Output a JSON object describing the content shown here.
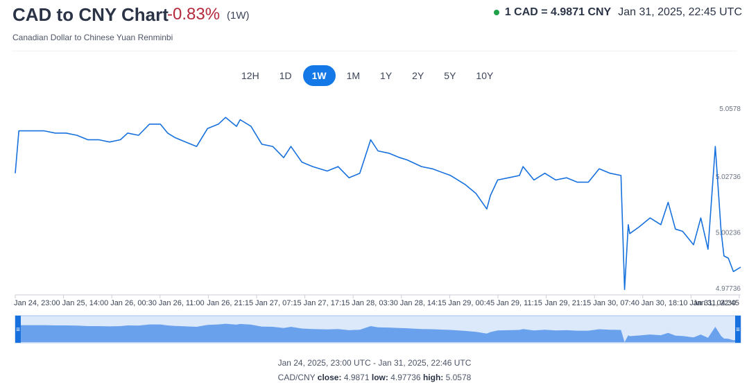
{
  "header": {
    "title": "CAD to CNY Chart",
    "change": "-0.83%",
    "period": "(1W)",
    "subtitle": "Canadian Dollar to Chinese Yuan Renminbi",
    "rate": "1 CAD = 4.9871 CNY",
    "rate_time": "Jan 31, 2025, 22:45 UTC",
    "status_color": "#1fa14a"
  },
  "range_buttons": [
    {
      "label": "12H",
      "active": false
    },
    {
      "label": "1D",
      "active": false
    },
    {
      "label": "1W",
      "active": true
    },
    {
      "label": "1M",
      "active": false
    },
    {
      "label": "1Y",
      "active": false
    },
    {
      "label": "2Y",
      "active": false
    },
    {
      "label": "5Y",
      "active": false
    },
    {
      "label": "10Y",
      "active": false
    }
  ],
  "footer": {
    "range_text": "Jan 24, 2025, 23:00 UTC - Jan 31, 2025, 22:46 UTC",
    "pair": "CAD/CNY",
    "close_label": "close:",
    "close": "4.9871",
    "low_label": "low:",
    "low": "4.97736",
    "high_label": "high:",
    "high": "5.0578"
  },
  "chart_data": {
    "type": "line",
    "line_color": "#1670dd",
    "navigator_fill": "#6aa1ec",
    "x_tick_labels": [
      "Jan 24, 23:00",
      "Jan 25, 14:00",
      "Jan 26, 00:30",
      "Jan 26, 11:00",
      "Jan 26, 21:15",
      "Jan 27, 07:15",
      "Jan 27, 17:15",
      "Jan 28, 03:30",
      "Jan 28, 14:15",
      "Jan 29, 00:45",
      "Jan 29, 11:15",
      "Jan 29, 21:15",
      "Jan 30, 07:40",
      "Jan 30, 18:10",
      "Jan 31, 04:30",
      "Jan 31, 22:45"
    ],
    "y_ticks": [
      "5.0578",
      "5.02736",
      "5.00236",
      "4.97736"
    ],
    "ylim": [
      4.97736,
      5.0578
    ],
    "grid": false,
    "x": [
      0,
      0.005,
      0.02,
      0.04,
      0.055,
      0.07,
      0.085,
      0.1,
      0.115,
      0.13,
      0.145,
      0.155,
      0.17,
      0.185,
      0.2,
      0.21,
      0.22,
      0.235,
      0.25,
      0.265,
      0.28,
      0.29,
      0.305,
      0.31,
      0.325,
      0.34,
      0.355,
      0.37,
      0.38,
      0.395,
      0.41,
      0.43,
      0.445,
      0.46,
      0.475,
      0.49,
      0.5,
      0.515,
      0.53,
      0.54,
      0.56,
      0.575,
      0.6,
      0.62,
      0.635,
      0.65,
      0.655,
      0.665,
      0.68,
      0.695,
      0.7,
      0.715,
      0.73,
      0.745,
      0.76,
      0.775,
      0.79,
      0.805,
      0.82,
      0.835,
      0.84,
      0.845,
      0.847,
      0.86,
      0.875,
      0.89,
      0.9,
      0.91,
      0.92,
      0.935,
      0.945,
      0.955,
      0.965,
      0.973,
      0.977,
      0.983,
      0.99,
      1
    ],
    "values": [
      5.029,
      5.048,
      5.048,
      5.048,
      5.047,
      5.047,
      5.046,
      5.044,
      5.044,
      5.043,
      5.044,
      5.047,
      5.046,
      5.051,
      5.051,
      5.047,
      5.045,
      5.043,
      5.041,
      5.049,
      5.051,
      5.054,
      5.05,
      5.053,
      5.05,
      5.042,
      5.041,
      5.036,
      5.041,
      5.034,
      5.032,
      5.03,
      5.032,
      5.027,
      5.029,
      5.044,
      5.039,
      5.038,
      5.036,
      5.035,
      5.032,
      5.031,
      5.028,
      5.024,
      5.02,
      5.013,
      5.019,
      5.026,
      5.027,
      5.028,
      5.032,
      5.026,
      5.029,
      5.026,
      5.027,
      5.025,
      5.025,
      5.031,
      5.029,
      5.028,
      4.977,
      5.006,
      5.002,
      5.005,
      5.009,
      5.006,
      5.016,
      5.004,
      5.003,
      4.997,
      5.009,
      4.995,
      5.041,
      5.003,
      4.992,
      4.991,
      4.985,
      4.987
    ]
  }
}
